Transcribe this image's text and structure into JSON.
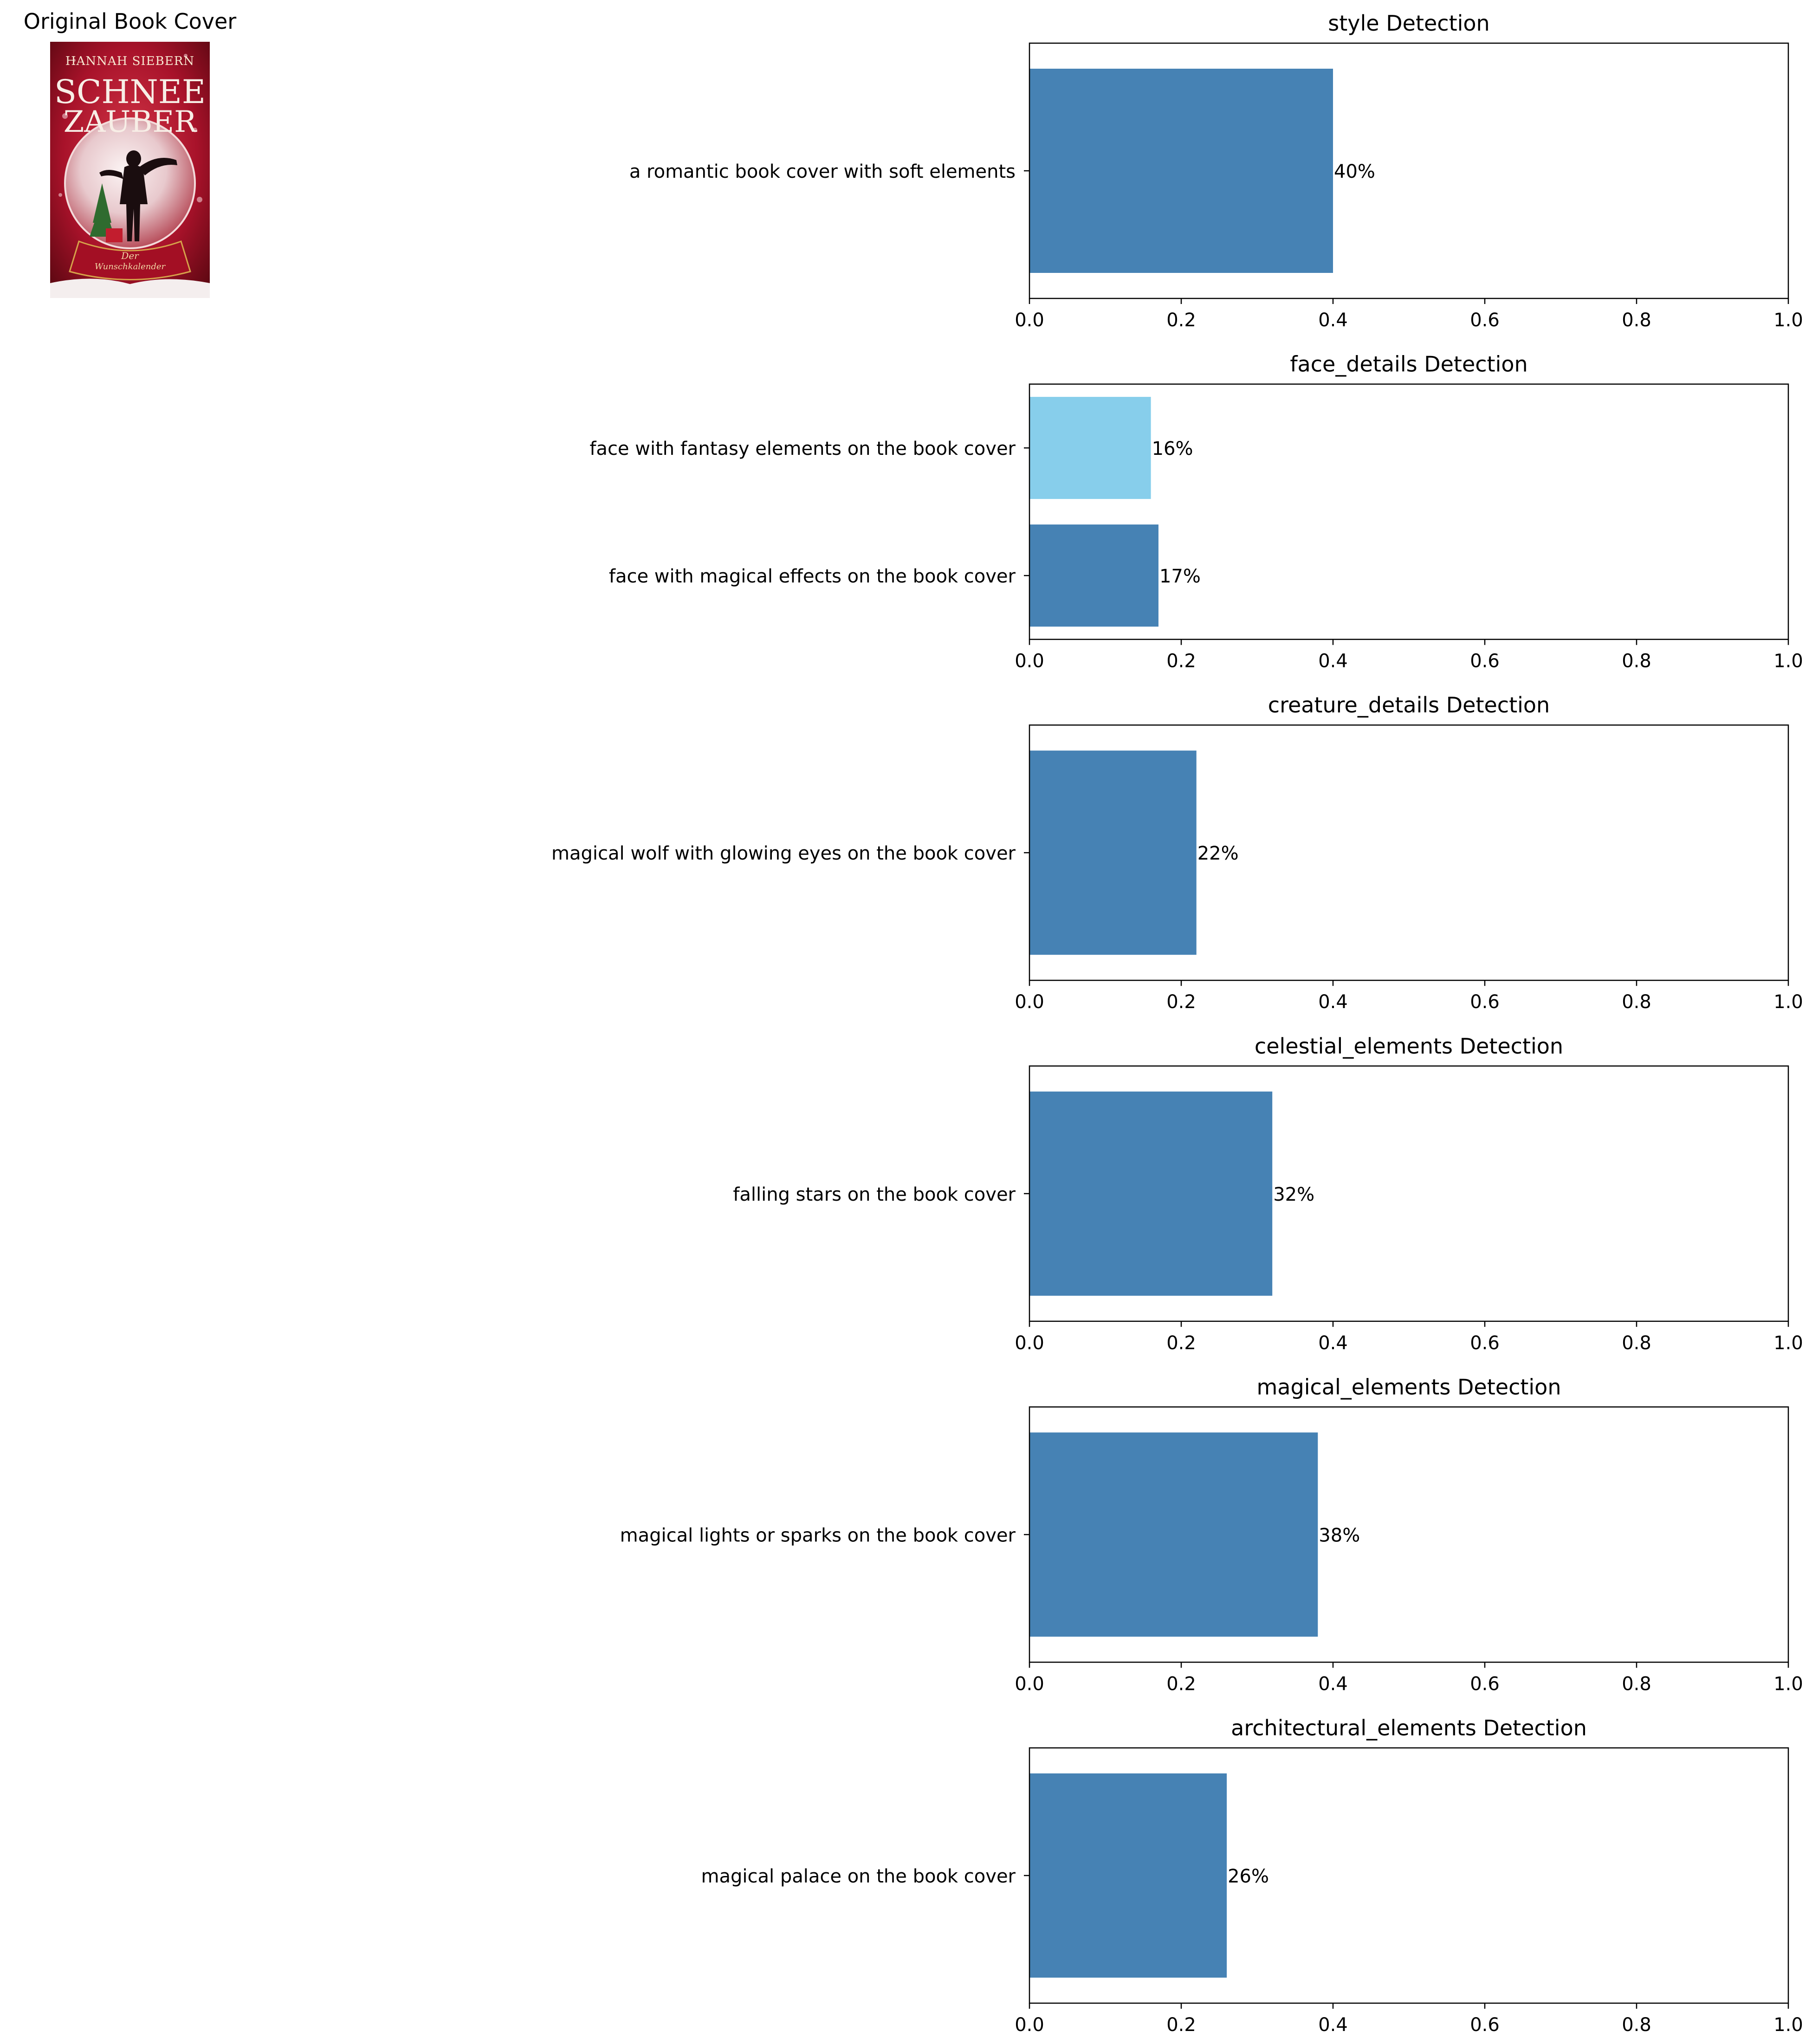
{
  "cover": {
    "title": "Original Book Cover",
    "author": "HANNAH SIEBERN",
    "book_title_line1": "SCHNEE",
    "book_title_line2": "ZAUBER",
    "subtitle_line1": "Der",
    "subtitle_line2": "Wunschkalender",
    "colors": {
      "red": "#a8122a",
      "dark_red": "#5e0812",
      "snow": "#f4eeee"
    }
  },
  "colors": {
    "bar": "#4682b4",
    "bar_highlight": "#87ceeb"
  },
  "chart_data": [
    {
      "type": "bar",
      "orientation": "horizontal",
      "title": "style Detection",
      "xlim": [
        0,
        1.0
      ],
      "xticks": [
        "0.0",
        "0.2",
        "0.4",
        "0.6",
        "0.8",
        "1.0"
      ],
      "categories": [
        "a romantic book cover with soft elements"
      ],
      "values": [
        0.4
      ],
      "labels": [
        "40%"
      ],
      "colors": [
        "#4682b4"
      ]
    },
    {
      "type": "bar",
      "orientation": "horizontal",
      "title": "face_details Detection",
      "xlim": [
        0,
        1.0
      ],
      "xticks": [
        "0.0",
        "0.2",
        "0.4",
        "0.6",
        "0.8",
        "1.0"
      ],
      "categories": [
        "face with magical effects on the book cover",
        "face with fantasy elements on the book cover"
      ],
      "values": [
        0.17,
        0.16
      ],
      "labels": [
        "17%",
        "16%"
      ],
      "colors": [
        "#4682b4",
        "#87ceeb"
      ]
    },
    {
      "type": "bar",
      "orientation": "horizontal",
      "title": "creature_details Detection",
      "xlim": [
        0,
        1.0
      ],
      "xticks": [
        "0.0",
        "0.2",
        "0.4",
        "0.6",
        "0.8",
        "1.0"
      ],
      "categories": [
        "magical wolf with glowing eyes on the book cover"
      ],
      "values": [
        0.22
      ],
      "labels": [
        "22%"
      ],
      "colors": [
        "#4682b4"
      ]
    },
    {
      "type": "bar",
      "orientation": "horizontal",
      "title": "celestial_elements Detection",
      "xlim": [
        0,
        1.0
      ],
      "xticks": [
        "0.0",
        "0.2",
        "0.4",
        "0.6",
        "0.8",
        "1.0"
      ],
      "categories": [
        "falling stars on the book cover"
      ],
      "values": [
        0.32
      ],
      "labels": [
        "32%"
      ],
      "colors": [
        "#4682b4"
      ]
    },
    {
      "type": "bar",
      "orientation": "horizontal",
      "title": "magical_elements Detection",
      "xlim": [
        0,
        1.0
      ],
      "xticks": [
        "0.0",
        "0.2",
        "0.4",
        "0.6",
        "0.8",
        "1.0"
      ],
      "categories": [
        "magical lights or sparks on the book cover"
      ],
      "values": [
        0.38
      ],
      "labels": [
        "38%"
      ],
      "colors": [
        "#4682b4"
      ]
    },
    {
      "type": "bar",
      "orientation": "horizontal",
      "title": "architectural_elements Detection",
      "xlim": [
        0,
        1.0
      ],
      "xticks": [
        "0.0",
        "0.2",
        "0.4",
        "0.6",
        "0.8",
        "1.0"
      ],
      "categories": [
        "magical palace on the book cover"
      ],
      "values": [
        0.26
      ],
      "labels": [
        "26%"
      ],
      "colors": [
        "#4682b4"
      ]
    }
  ]
}
